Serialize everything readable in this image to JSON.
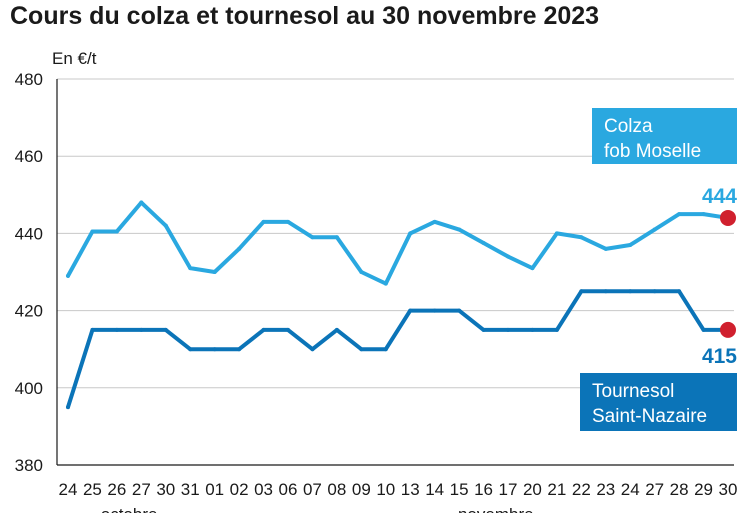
{
  "title": "Cours du colza et tournesol au 30 novembre 2023",
  "chart_data": {
    "type": "line",
    "title": "Cours du colza et tournesol au 30 novembre 2023",
    "unit_label": "En €/t",
    "ylim": [
      380,
      480
    ],
    "yticks": [
      380,
      400,
      420,
      440,
      460,
      480
    ],
    "grid": true,
    "categories": [
      "24",
      "25",
      "26",
      "27",
      "30",
      "31",
      "01",
      "02",
      "03",
      "06",
      "07",
      "08",
      "09",
      "10",
      "13",
      "14",
      "15",
      "16",
      "17",
      "20",
      "21",
      "22",
      "23",
      "24",
      "27",
      "28",
      "29",
      "30"
    ],
    "month_labels": [
      {
        "label": "octobre",
        "category_index": 2.5
      },
      {
        "label": "novembre",
        "category_index": 17.5
      }
    ],
    "series": [
      {
        "name_lines": [
          "Colza",
          "fob Moselle"
        ],
        "color": "#2aa8e0",
        "values": [
          429,
          440.5,
          440.5,
          448,
          442,
          431,
          430,
          436,
          443,
          443,
          439,
          439,
          430,
          427,
          440,
          443,
          441,
          437.5,
          434,
          431,
          440,
          439,
          436,
          437,
          441,
          445,
          445,
          444
        ],
        "end_label": "444"
      },
      {
        "name_lines": [
          "Tournesol",
          "Saint-Nazaire"
        ],
        "color": "#0b74b8",
        "values": [
          395,
          415,
          415,
          415,
          415,
          410,
          410,
          410,
          415,
          415,
          410,
          415,
          410,
          410,
          420,
          420,
          420,
          415,
          415,
          415,
          415,
          425,
          425,
          425,
          425,
          425,
          415,
          415
        ],
        "end_label": "415"
      }
    ],
    "end_marker_color": "#d0202e",
    "legend_text_color": "#ffffff"
  }
}
